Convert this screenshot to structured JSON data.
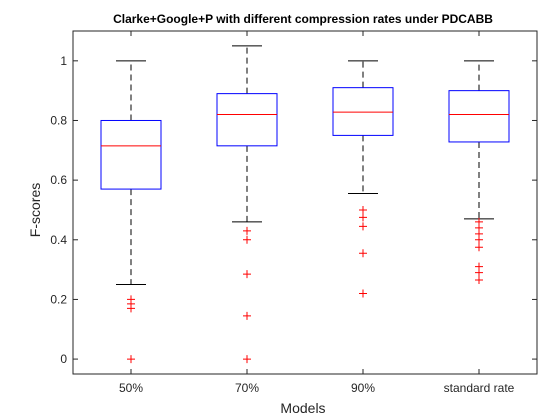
{
  "chart_data": {
    "type": "boxplot",
    "title": "Clarke+Google+P with different compression rates under PDCABB",
    "xlabel": "Models",
    "ylabel": "F-scores",
    "categories": [
      "50%",
      "70%",
      "90%",
      "standard rate"
    ],
    "ylim": [
      -0.05,
      1.1
    ],
    "yticks": [
      0,
      0.2,
      0.4,
      0.6,
      0.8,
      1
    ],
    "ytick_labels": [
      "0",
      "0.2",
      "0.4",
      "0.6",
      "0.8",
      "1"
    ],
    "grid": false,
    "boxes": [
      {
        "category": "50%",
        "whisker_low": 0.25,
        "q1": 0.57,
        "median": 0.715,
        "q3": 0.8,
        "whisker_high": 1.0,
        "outliers": [
          0.2,
          0.185,
          0.17,
          0.0
        ]
      },
      {
        "category": "70%",
        "whisker_low": 0.46,
        "q1": 0.715,
        "median": 0.82,
        "q3": 0.89,
        "whisker_high": 1.05,
        "outliers": [
          0.43,
          0.4,
          0.285,
          0.145,
          0.0
        ]
      },
      {
        "category": "90%",
        "whisker_low": 0.555,
        "q1": 0.75,
        "median": 0.828,
        "q3": 0.91,
        "whisker_high": 1.0,
        "outliers": [
          0.5,
          0.475,
          0.445,
          0.355,
          0.22
        ]
      },
      {
        "category": "standard rate",
        "whisker_low": 0.47,
        "q1": 0.728,
        "median": 0.82,
        "q3": 0.9,
        "whisker_high": 1.0,
        "outliers": [
          0.46,
          0.44,
          0.42,
          0.4,
          0.375,
          0.31,
          0.29,
          0.265
        ]
      }
    ],
    "colors": {
      "box": "#0000ff",
      "median": "#ff0000",
      "whisker": "#000000",
      "outlier": "#ff0000",
      "axes": "#262626"
    }
  }
}
